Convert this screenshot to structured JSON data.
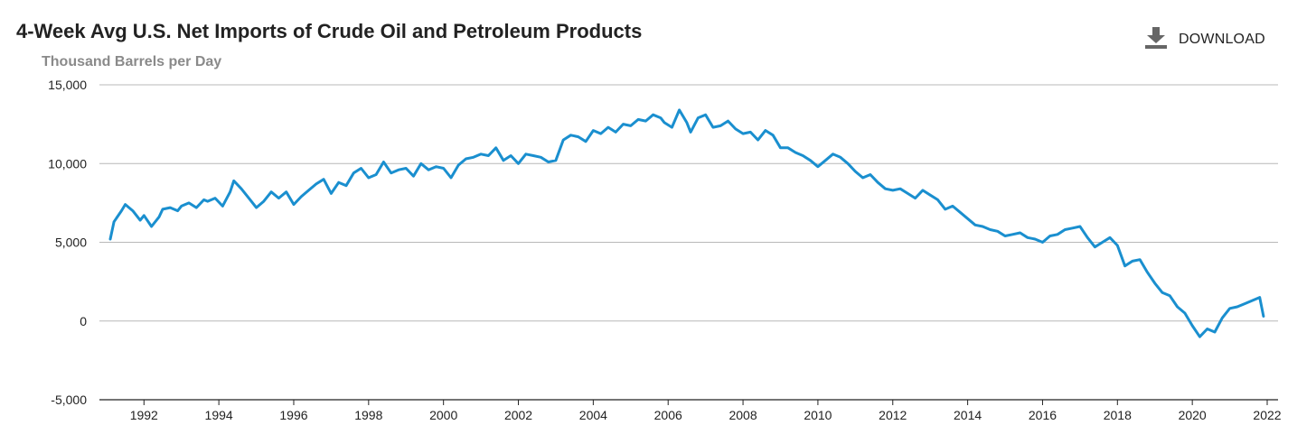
{
  "header": {
    "title": "4-Week Avg U.S. Net Imports of Crude Oil and Petroleum Products",
    "subtitle": "Thousand Barrels per Day",
    "download_label": "DOWNLOAD",
    "download_icon": "download-icon"
  },
  "colors": {
    "line": "#1a8fcf",
    "grid": "#b8b8b8",
    "text": "#222222",
    "subtitle": "#8a8a8a",
    "icon": "#666666"
  },
  "chart_data": {
    "type": "line",
    "title": "4-Week Avg U.S. Net Imports of Crude Oil and Petroleum Products",
    "subtitle": "Thousand Barrels per Day",
    "xlabel": "",
    "ylabel": "",
    "xlim": [
      1991.1,
      2022.0
    ],
    "ylim": [
      -5000,
      15000
    ],
    "y_ticks": [
      -5000,
      0,
      5000,
      10000,
      15000
    ],
    "y_tick_labels": [
      "-5,000",
      "0",
      "5,000",
      "10,000",
      "15,000"
    ],
    "x_ticks": [
      1992,
      1994,
      1996,
      1998,
      2000,
      2002,
      2004,
      2006,
      2008,
      2010,
      2012,
      2014,
      2016,
      2018,
      2020,
      2022
    ],
    "x_tick_labels": [
      "1992",
      "1994",
      "1996",
      "1998",
      "2000",
      "2002",
      "2004",
      "2006",
      "2008",
      "2010",
      "2012",
      "2014",
      "2016",
      "2018",
      "2020",
      "2022"
    ],
    "grid": true,
    "legend": "none",
    "series": [
      {
        "x": [
          1991.1,
          1991.2,
          1991.4,
          1991.5,
          1991.7,
          1991.9,
          1992.0,
          1992.2,
          1992.4,
          1992.5,
          1992.7,
          1992.9,
          1993.0,
          1993.2,
          1993.4,
          1993.6,
          1993.7,
          1993.9,
          1994.1,
          1994.3,
          1994.4,
          1994.6,
          1994.8,
          1995.0,
          1995.2,
          1995.4,
          1995.6,
          1995.8,
          1996.0,
          1996.2,
          1996.4,
          1996.6,
          1996.8,
          1997.0,
          1997.2,
          1997.4,
          1997.6,
          1997.8,
          1998.0,
          1998.2,
          1998.4,
          1998.6,
          1998.8,
          1999.0,
          1999.2,
          1999.4,
          1999.6,
          1999.8,
          2000.0,
          2000.2,
          2000.4,
          2000.6,
          2000.8,
          2001.0,
          2001.2,
          2001.4,
          2001.6,
          2001.8,
          2002.0,
          2002.2,
          2002.4,
          2002.6,
          2002.8,
          2003.0,
          2003.2,
          2003.4,
          2003.6,
          2003.8,
          2004.0,
          2004.2,
          2004.4,
          2004.6,
          2004.8,
          2005.0,
          2005.2,
          2005.4,
          2005.6,
          2005.8,
          2005.9,
          2006.1,
          2006.3,
          2006.5,
          2006.6,
          2006.8,
          2007.0,
          2007.2,
          2007.4,
          2007.6,
          2007.8,
          2008.0,
          2008.2,
          2008.4,
          2008.6,
          2008.8,
          2009.0,
          2009.2,
          2009.4,
          2009.6,
          2009.8,
          2010.0,
          2010.2,
          2010.4,
          2010.6,
          2010.8,
          2011.0,
          2011.2,
          2011.4,
          2011.6,
          2011.8,
          2012.0,
          2012.2,
          2012.4,
          2012.6,
          2012.8,
          2013.0,
          2013.2,
          2013.4,
          2013.6,
          2013.8,
          2014.0,
          2014.2,
          2014.4,
          2014.6,
          2014.8,
          2015.0,
          2015.2,
          2015.4,
          2015.6,
          2015.8,
          2016.0,
          2016.2,
          2016.4,
          2016.6,
          2016.8,
          2017.0,
          2017.2,
          2017.4,
          2017.6,
          2017.8,
          2018.0,
          2018.2,
          2018.4,
          2018.6,
          2018.8,
          2019.0,
          2019.2,
          2019.4,
          2019.6,
          2019.8,
          2020.0,
          2020.2,
          2020.4,
          2020.6,
          2020.8,
          2021.0,
          2021.2,
          2021.4,
          2021.6,
          2021.8,
          2021.9
        ],
        "values": [
          5200,
          6300,
          7000,
          7400,
          7000,
          6400,
          6700,
          6000,
          6600,
          7100,
          7200,
          7000,
          7300,
          7500,
          7200,
          7700,
          7600,
          7800,
          7300,
          8200,
          8900,
          8400,
          7800,
          7200,
          7600,
          8200,
          7800,
          8200,
          7400,
          7900,
          8300,
          8700,
          9000,
          8100,
          8800,
          8600,
          9400,
          9700,
          9100,
          9300,
          10100,
          9400,
          9600,
          9700,
          9200,
          10000,
          9600,
          9800,
          9700,
          9100,
          9900,
          10300,
          10400,
          10600,
          10500,
          11000,
          10200,
          10500,
          10000,
          10600,
          10500,
          10400,
          10100,
          10200,
          11500,
          11800,
          11700,
          11400,
          12100,
          11900,
          12300,
          12000,
          12500,
          12400,
          12800,
          12700,
          13100,
          12900,
          12600,
          12300,
          13400,
          12600,
          12000,
          12900,
          13100,
          12300,
          12400,
          12700,
          12200,
          11900,
          12000,
          11500,
          12100,
          11800,
          11000,
          11000,
          10700,
          10500,
          10200,
          9800,
          10200,
          10600,
          10400,
          10000,
          9500,
          9100,
          9300,
          8800,
          8400,
          8300,
          8400,
          8100,
          7800,
          8300,
          8000,
          7700,
          7100,
          7300,
          6900,
          6500,
          6100,
          6000,
          5800,
          5700,
          5400,
          5500,
          5600,
          5300,
          5200,
          5000,
          5400,
          5500,
          5800,
          5900,
          6000,
          5300,
          4700,
          5000,
          5300,
          4800,
          3500,
          3800,
          3900,
          3100,
          2400,
          1800,
          1600,
          900,
          500,
          -300,
          -1000,
          -500,
          -700,
          200,
          800,
          900,
          1100,
          1300,
          1500,
          300
        ]
      }
    ]
  }
}
